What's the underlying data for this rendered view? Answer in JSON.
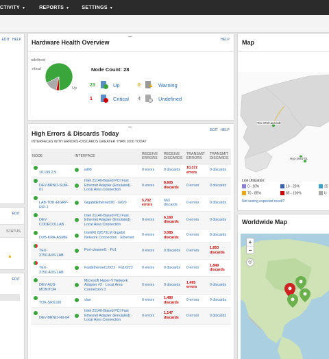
{
  "nav": [
    {
      "label": "CTIVITY"
    },
    {
      "label": "REPORTS"
    },
    {
      "label": "SETTINGS"
    }
  ],
  "left_panel": {
    "edit": "EDIT",
    "help": "HELP",
    "edit2": "EDIT",
    "status": "STATUS",
    "edit3": "EDIT"
  },
  "hardware": {
    "title": "Hardware Health Overview",
    "help": "HELP",
    "pie_labels": {
      "undefined": "ndefined",
      "critical": "ritical",
      "up": "Up"
    },
    "node_count_label": "Node Count: 28",
    "stats": [
      {
        "count": "23",
        "label": "Up",
        "color": "#3aa53a"
      },
      {
        "count": "0",
        "label": "Warning",
        "color": "#e0a800"
      },
      {
        "count": "1",
        "label": "Critical",
        "color": "#cc0000"
      },
      {
        "count": "4",
        "label": "Undefined",
        "color": "#888888"
      }
    ],
    "chart_data": {
      "type": "pie",
      "categories": [
        "Up",
        "Warning",
        "Critical",
        "Undefined"
      ],
      "values": [
        23,
        0,
        1,
        4
      ],
      "colors": [
        "#3aa53a",
        "#e0a800",
        "#cc0000",
        "#aaaaaa"
      ]
    }
  },
  "errors": {
    "title": "High Errors & Discards Today",
    "subtitle": "INTERFACES WITH ERRORS+DISCARDS GREATER THAN 1000 TODAY",
    "edit": "EDIT",
    "help": "HELP",
    "headers": [
      "NODE",
      "INTERFACE",
      "RECEIVE ERRORS",
      "RECEIVE DISCARDS",
      "TRANSMIT ERRORS",
      "TRANSMIT DISCARDS"
    ],
    "rows": [
      {
        "node": "10.199.2.9",
        "iface": "wifi0",
        "rx_err": "0 errors",
        "rx_disc": "0 discards",
        "tx_err": "10,372 errors",
        "tx_disc": "0 discards",
        "hi": [
          false,
          false,
          true,
          false
        ],
        "mixed": false
      },
      {
        "node": "DEV-BRNO-SUM-01",
        "iface": "Intel 21140-Based PCI Fast Ethernet Adapter (Emulated) · Local Area Connection",
        "rx_err": "0 errors",
        "rx_disc": "8,605 discards",
        "tx_err": "0 errors",
        "tx_disc": "0 discards",
        "hi": [
          false,
          true,
          false,
          false
        ],
        "mixed": false
      },
      {
        "node": "LAB-TOK-EIGRP-RIP-1",
        "iface": "GigabitEthernet0/0 · Gi0/0",
        "rx_err": "5,702 errors",
        "rx_disc": "663 discards",
        "tx_err": "0 errors",
        "tx_disc": "0 discards",
        "hi": [
          true,
          false,
          false,
          false
        ],
        "mixed": false
      },
      {
        "node": "DEV-CODECOLLAB",
        "iface": "Intel 21140-Based PCI Fast Ethernet Adapter (Emulated) · Local Area Connection",
        "rx_err": "0 errors",
        "rx_disc": "6,160 discards",
        "tx_err": "0 errors",
        "tx_disc": "0 discards",
        "hi": [
          false,
          true,
          false,
          false
        ],
        "mixed": false
      },
      {
        "node": "DVB-KRA-ASMIE",
        "iface": "Intel(R) 82579LM Gigabit Network Connection · Ethernet",
        "rx_err": "0 errors",
        "rx_disc": "3,085 discards",
        "tx_err": "0 errors",
        "tx_disc": "0 discards",
        "hi": [
          false,
          true,
          false,
          false
        ],
        "mixed": false
      },
      {
        "node": "TEX-3750.AUS.LAB",
        "iface": "Port-channel1 · Po1",
        "rx_err": "0 errors",
        "rx_disc": "0 discards",
        "tx_err": "0 errors",
        "tx_disc": "1,853 discards",
        "hi": [
          false,
          false,
          false,
          true
        ],
        "mixed": true
      },
      {
        "node": "TEX-3750.AUS.LAB",
        "iface": "FastEthernet1/0/23 · Fa1/0/23",
        "rx_err": "0 errors",
        "rx_disc": "0 discards",
        "tx_err": "0 errors",
        "tx_disc": "1,849 discards",
        "hi": [
          false,
          false,
          false,
          true
        ],
        "mixed": true
      },
      {
        "node": "DEV-AUS-MONITOR",
        "iface": "Microsoft Hyper-V Network Adapter #2 · Local Area Connection 3",
        "rx_err": "0 errors",
        "rx_disc": "0 discards",
        "tx_err": "1,495 errors",
        "tx_disc": "0 discards",
        "hi": [
          false,
          false,
          true,
          false
        ],
        "mixed": false
      },
      {
        "node": "TOK-SRX100",
        "iface": "vlan",
        "rx_err": "0 errors",
        "rx_disc": "1,480 discards",
        "tx_err": "0 errors",
        "tx_disc": "0 discards",
        "hi": [
          false,
          true,
          false,
          false
        ],
        "mixed": false
      },
      {
        "node": "DEV-BRNO-H9-04",
        "iface": "Intel 21140-Based PCI Fast Ethernet Adapter (Emulated) · Local Area Connection",
        "rx_err": "0 errors",
        "rx_disc": "1,147 discards",
        "tx_err": "0 errors",
        "tx_disc": "0 discards",
        "hi": [
          false,
          true,
          false,
          false
        ],
        "mixed": false
      }
    ]
  },
  "map": {
    "title": "Map",
    "label1": "Tex-3750.aus.lab",
    "label2": "Hyp-2651-01",
    "util_title": "Link Utilization:",
    "legend": [
      {
        "label": "0 - 10%",
        "color": "#8a7fd8"
      },
      {
        "label": "10 - 25%",
        "color": "#3a5fb0"
      },
      {
        "label": "25",
        "color": "#3aa0c8"
      },
      {
        "label": "70 - 85%",
        "color": "#f0a800"
      },
      {
        "label": "85 - 100%",
        "color": "#cc0000"
      },
      {
        "label": "U",
        "color": "#aaaaaa"
      }
    ],
    "link": "Not seeing expected result?"
  },
  "worldwide": {
    "title": "Worldwide Map",
    "zoom_in": "+",
    "zoom_out": "−"
  }
}
